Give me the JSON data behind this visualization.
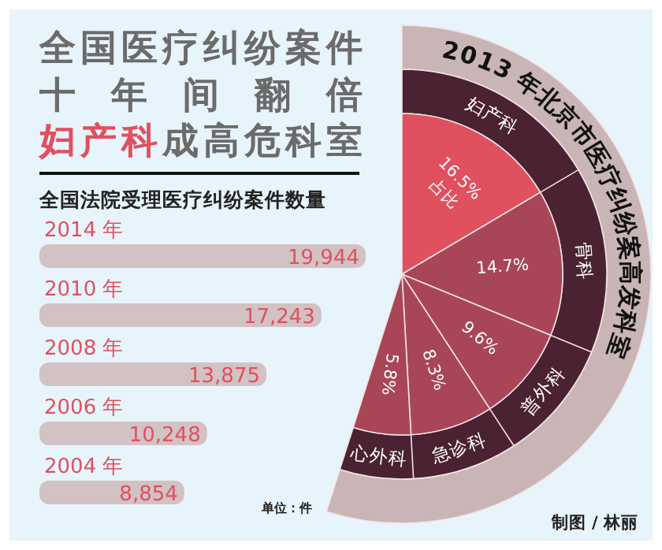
{
  "chart_data": [
    {
      "type": "bar",
      "orientation": "horizontal",
      "title": "全国法院受理医疗纠纷案件数量",
      "categories": [
        "2014 年",
        "2010 年",
        "2008 年",
        "2006 年",
        "2004 年"
      ],
      "values": [
        19944,
        17243,
        13875,
        10248,
        8854
      ],
      "value_labels": [
        "19,944",
        "17,243",
        "13,875",
        "10,248",
        "8,854"
      ],
      "color": "#d2c2c4",
      "annotations": [
        "全国医疗纠纷案件",
        "十 年 间 翻 倍",
        "妇产科成高危科室",
        "单位：件"
      ]
    },
    {
      "type": "pie",
      "title": "2013 年北京市医疗纠纷案高发科室",
      "categories": [
        "妇产科",
        "骨科",
        "普外科",
        "急诊科",
        "心外科"
      ],
      "values": [
        16.5,
        14.7,
        9.6,
        8.3,
        5.8
      ],
      "value_labels": [
        "16.5%",
        "14.7%",
        "9.6%",
        "8.3%",
        "5.8%"
      ],
      "colors": [
        "#e0505f",
        "#a84657",
        "#a84657",
        "#a84657",
        "#a84657"
      ],
      "annotations": [
        "占比",
        "制图 / 林丽"
      ]
    }
  ]
}
